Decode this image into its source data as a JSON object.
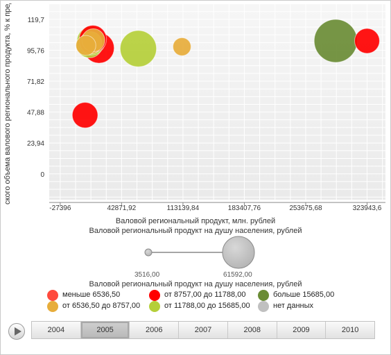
{
  "chart_data": {
    "type": "scatter",
    "subtype": "bubble",
    "xlabel": "Валовой региональный продукт, млн. рублей",
    "ylabel": "ского объема валового регионального продукта, % к предш",
    "x_ticks": [
      "-27396",
      "42871,92",
      "113139,84",
      "183407,76",
      "253675,68",
      "323943,6"
    ],
    "x_tick_values": [
      -27396,
      42871.92,
      113139.84,
      183407.76,
      253675.68,
      323943.6
    ],
    "xlim": [
      -40000,
      345000
    ],
    "y_ticks": [
      "0",
      "23,94",
      "47,88",
      "71,82",
      "95,76",
      "119,7"
    ],
    "y_tick_values": [
      0,
      23.94,
      47.88,
      71.82,
      95.76,
      119.7
    ],
    "ylim": [
      -20,
      132
    ],
    "grid": true,
    "points": [
      {
        "x": -2000,
        "y": 102.5,
        "size": 3516,
        "color": "#ff4a3d"
      },
      {
        "x": 17000,
        "y": 97.5,
        "size": 28000,
        "color": "#ff0000"
      },
      {
        "x": 6000,
        "y": 100,
        "size": 20000,
        "color": "#b5cf3a"
      },
      {
        "x": 8000,
        "y": 103,
        "size": 24000,
        "color": "#b5cf3a"
      },
      {
        "x": 10000,
        "y": 104.5,
        "size": 22000,
        "color": "#ff0000"
      },
      {
        "x": 7500,
        "y": 101.5,
        "size": 14000,
        "color": "#e7ad3b"
      },
      {
        "x": 10500,
        "y": 103.5,
        "size": 15000,
        "color": "#e7ad3b"
      },
      {
        "x": 2000,
        "y": 99.5,
        "size": 11000,
        "color": "#e7ad3b"
      },
      {
        "x": 62000,
        "y": 97,
        "size": 42000,
        "color": "#b5cf3a"
      },
      {
        "x": 112000,
        "y": 98.5,
        "size": 9000,
        "color": "#e7ad3b"
      },
      {
        "x": 1000,
        "y": 45.5,
        "size": 19000,
        "color": "#ff0000"
      },
      {
        "x": 288000,
        "y": 103,
        "size": 61592,
        "color": "#6a8c35"
      },
      {
        "x": 323943.6,
        "y": 103,
        "size": 18000,
        "color": "#ff0000"
      }
    ]
  },
  "size_legend": {
    "title": "Валовой региональный продукт на душу населения, рублей",
    "min_label": "3516,00",
    "max_label": "61592,00",
    "min": 3516,
    "max": 61592
  },
  "color_legend": {
    "title": "Валовой региональный продукт на душу населения, рублей",
    "items": [
      {
        "label": "меньше 6536,50",
        "color": "#ff4a3d"
      },
      {
        "label": "от 8757,00 до 11788,00",
        "color": "#ff0000"
      },
      {
        "label": "больше 15685,00",
        "color": "#6a8c35"
      },
      {
        "label": "от 6536,50 до 8757,00",
        "color": "#e7ad3b"
      },
      {
        "label": "от 11788,00 до 15685,00",
        "color": "#b5cf3a"
      },
      {
        "label": "нет данных",
        "color": "#c0c0c0"
      }
    ]
  },
  "timeline": {
    "years": [
      "2004",
      "2005",
      "2006",
      "2007",
      "2008",
      "2009",
      "2010"
    ],
    "active": "2005"
  }
}
